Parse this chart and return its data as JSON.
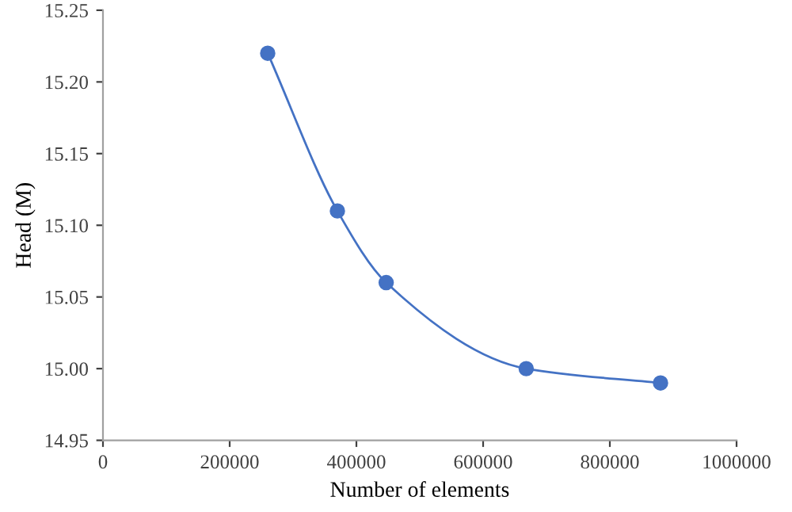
{
  "chart_data": {
    "type": "line",
    "xlabel": "Number of elements",
    "ylabel": "Head (M)",
    "x": [
      260000,
      370000,
      447000,
      668000,
      880000
    ],
    "series": [
      {
        "color": "#4472c4",
        "values": [
          15.22,
          15.11,
          15.06,
          15.0,
          14.99
        ]
      }
    ],
    "xlim": [
      0,
      1000000
    ],
    "xticks": [
      0,
      200000,
      400000,
      600000,
      800000,
      1000000
    ],
    "ylim": [
      14.95,
      15.25
    ],
    "yticks": [
      {
        "value": 14.95,
        "label": "14.95"
      },
      {
        "value": 15.0,
        "label": "15.00"
      },
      {
        "value": 15.05,
        "label": "15.05"
      },
      {
        "value": 15.1,
        "label": "15.10"
      },
      {
        "value": 15.15,
        "label": "15.15"
      },
      {
        "value": 15.2,
        "label": "15.20"
      },
      {
        "value": 15.25,
        "label": "15.25"
      }
    ],
    "marker": "circle",
    "line_style": "solid",
    "grid": false
  }
}
